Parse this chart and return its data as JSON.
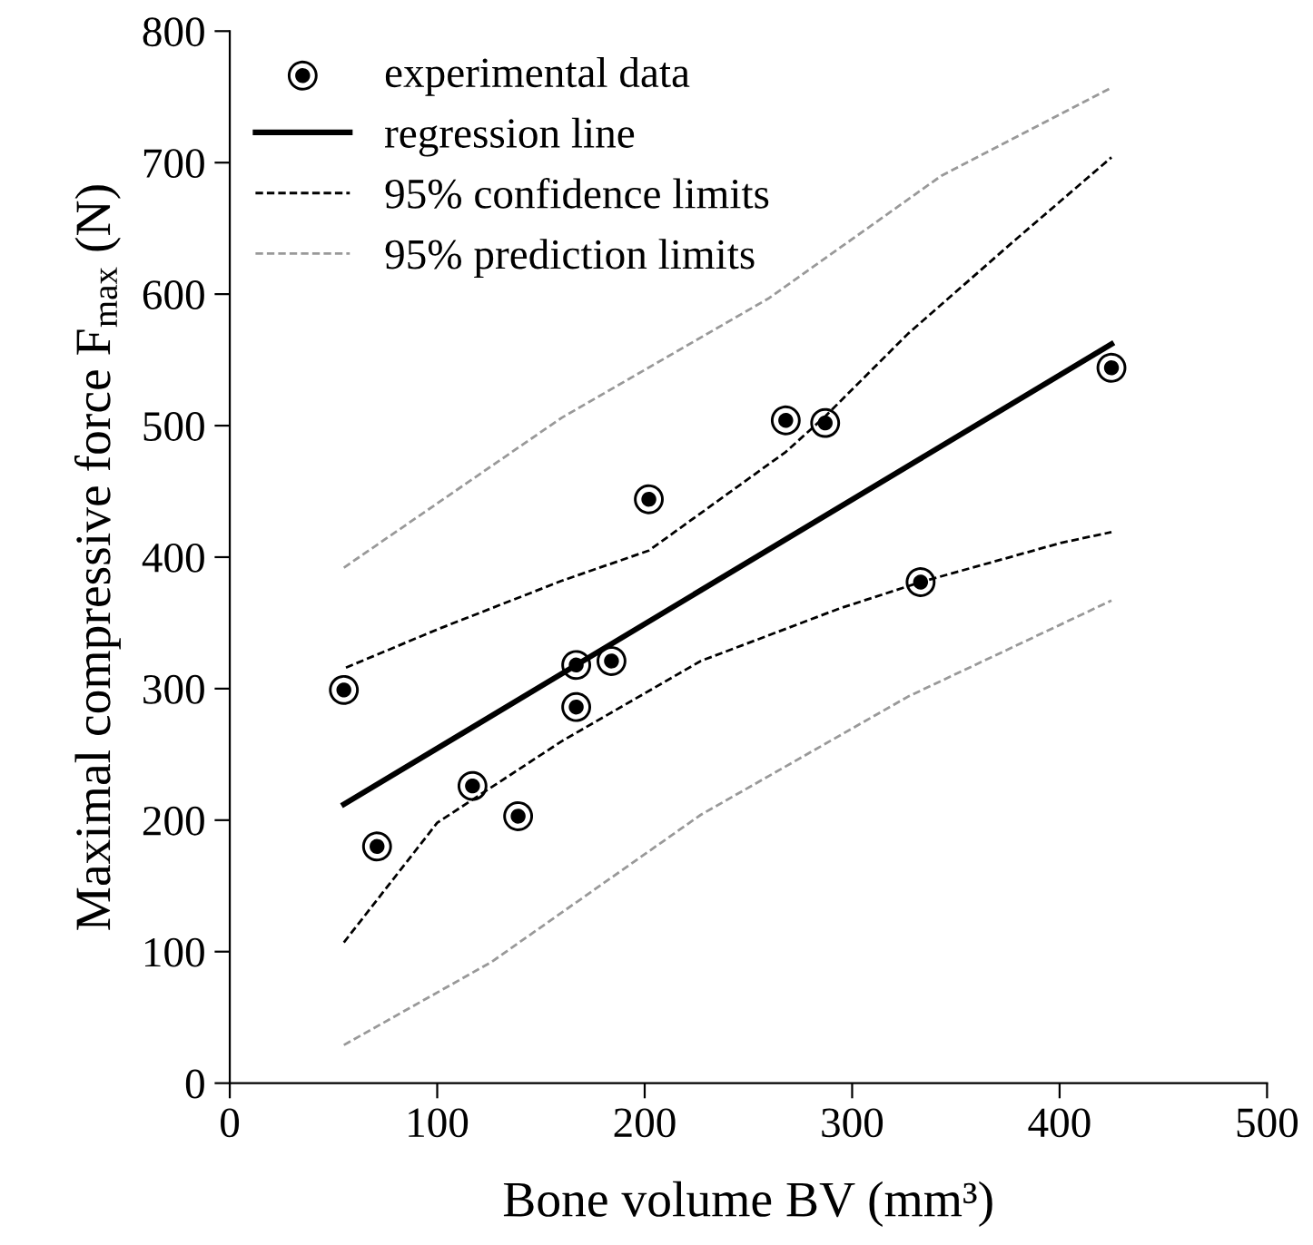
{
  "chart_data": {
    "type": "scatter",
    "xlabel": "Bone volume BV (mm³)",
    "ylabel": "Maximal compressive force F$_{max}$ (N)",
    "xlim": [
      0,
      500
    ],
    "xticks": [
      0,
      100,
      200,
      300,
      400,
      500
    ],
    "ylim": [
      0,
      800
    ],
    "yticks": [
      0,
      100,
      200,
      300,
      400,
      500,
      600,
      700,
      800
    ],
    "grid": false,
    "legend": "top left",
    "series": [
      {
        "name": "experimental data",
        "marker": "circle",
        "color": "#000000",
        "x": [
          55,
          71,
          117,
          139,
          167,
          167,
          184,
          202,
          268,
          287,
          333,
          425
        ],
        "values": [
          299,
          180,
          226,
          203,
          318,
          286,
          321,
          444,
          504,
          502,
          381,
          544
        ]
      },
      {
        "name": "regression line",
        "type": "line",
        "line_style": "solid",
        "color": "#000000",
        "x": [
          55,
          425
        ],
        "values": [
          212,
          562
        ]
      },
      {
        "name": "95% confidence limits",
        "type": "line",
        "line_style": "dashed",
        "color": "#000000",
        "x": [
          56,
          100,
          160,
          202,
          268,
          287,
          327,
          377,
          425
        ],
        "values": [
          316,
          345,
          382,
          405,
          480,
          507,
          570,
          639,
          704
        ]
      },
      {
        "type": "line",
        "line_style": "dashed",
        "color": "#000000",
        "x": [
          55,
          100,
          160,
          227,
          294,
          333,
          401,
          425
        ],
        "values": [
          107,
          198,
          260,
          321,
          361,
          381,
          411,
          419
        ]
      },
      {
        "name": "95% prediction limits",
        "type": "line",
        "line_style": "dashed",
        "color": "#999999",
        "x": [
          55,
          160,
          260,
          343,
          425
        ],
        "values": [
          392,
          506,
          597,
          690,
          757
        ]
      },
      {
        "type": "line",
        "line_style": "dashed",
        "color": "#999999",
        "x": [
          55,
          126,
          227,
          327,
          425
        ],
        "values": [
          29,
          92,
          204,
          294,
          367
        ]
      }
    ]
  }
}
